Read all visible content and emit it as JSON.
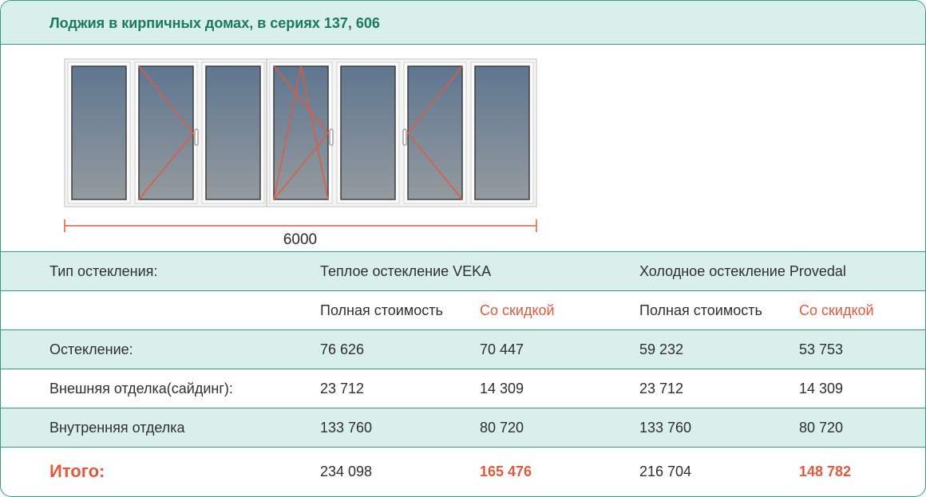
{
  "header": {
    "title": "Лоджия в кирпичных домах, в сериях 137, 606"
  },
  "diagram": {
    "dimension_label": "6000"
  },
  "table": {
    "type_label": "Тип остекления:",
    "warm_label": "Теплое остекление VEKA",
    "cold_label": "Холодное остекление Provedal",
    "full_price_label": "Полная стоимость",
    "discount_label": "Со скидкой",
    "rows": [
      {
        "label": "Остекление:",
        "v1": "76 626",
        "v2": "70 447",
        "v3": "59 232",
        "v4": "53 753"
      },
      {
        "label": "Внешняя отделка(сайдинг):",
        "v1": "23 712",
        "v2": "14 309",
        "v3": "23 712",
        "v4": "14 309"
      },
      {
        "label": "Внутренняя отделка",
        "v1": "133 760",
        "v2": "80 720",
        "v3": "133 760",
        "v4": "80 720"
      }
    ],
    "total": {
      "label": "Итого:",
      "v1": "234 098",
      "v2": "165 476",
      "v3": "216 704",
      "v4": "148 782"
    }
  },
  "colors": {
    "accent": "#1b7a5e",
    "band": "#d9efe9",
    "discount": "#e05a40",
    "border": "#3a9a7e"
  }
}
